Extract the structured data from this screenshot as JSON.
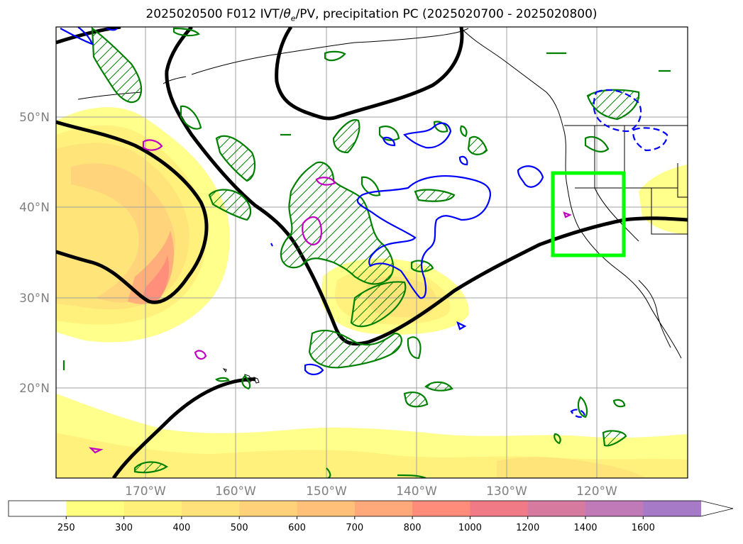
{
  "title": {
    "prefix": "2025020500 F012 IVT/",
    "theta": "θ",
    "sub": "e",
    "suffix": "/PV, precipitation PC (2025020700 - 2025020800)"
  },
  "axes": {
    "lat_labels": [
      "50°N",
      "40°N",
      "30°N",
      "20°N"
    ],
    "lon_labels": [
      "170°W",
      "160°W",
      "150°W",
      "140°W",
      "130°W",
      "120°W"
    ]
  },
  "colorbar": {
    "ticks": [
      "250",
      "300",
      "400",
      "500",
      "600",
      "700",
      "800",
      "1000",
      "1200",
      "1400",
      "1600"
    ],
    "colors": [
      "#ffffff",
      "#ffff80",
      "#fff07a",
      "#ffe27a",
      "#ffd27a",
      "#ffc07a",
      "#ffa87a",
      "#ff8c7a",
      "#f07a86",
      "#d77aa0",
      "#c07ab8",
      "#a77ac8"
    ]
  },
  "overlay_colors": {
    "theta_e": "#000000",
    "pv_positive": "#008000",
    "pv_negative": "#0000ff",
    "precip_pc": "#c000c0",
    "target_box": "#00ff00",
    "coastline": "#000000",
    "gridline": "#a0a0a0"
  }
}
